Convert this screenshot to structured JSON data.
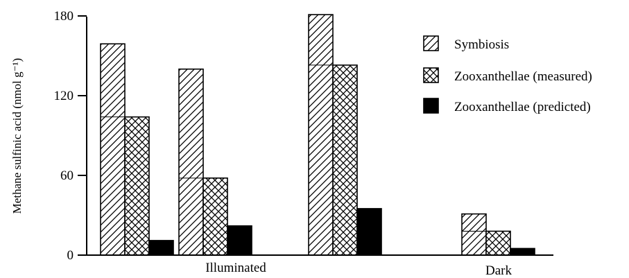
{
  "chart_data": {
    "type": "bar",
    "ylabel": "Methane sulfinic acid (nmol g⁻¹)",
    "ylim": [
      0,
      180
    ],
    "yticks": [
      0,
      60,
      120,
      180
    ],
    "grid": false,
    "legend_position": "top-right",
    "legend": [
      {
        "name": "Symbiosis",
        "pattern": "hatch"
      },
      {
        "name": "Zooxanthellae (measured)",
        "pattern": "crosshatch"
      },
      {
        "name": "Zooxanthellae (predicted)",
        "pattern": "solid"
      }
    ],
    "group_labels": [
      "Illuminated",
      "Dark"
    ],
    "bar_sets": [
      {
        "group": "Illuminated",
        "symbiosis": 159,
        "zoox_measured": 104,
        "zoox_predicted": 11
      },
      {
        "group": "Illuminated",
        "symbiosis": 140,
        "zoox_measured": 58,
        "zoox_predicted": 22
      },
      {
        "group": "Illuminated",
        "symbiosis": 181,
        "zoox_measured": 143,
        "zoox_predicted": 35
      },
      {
        "group": "Dark",
        "symbiosis": 31,
        "zoox_measured": 18,
        "zoox_predicted": 5
      }
    ],
    "colors": {
      "ink": "#000000",
      "background": "#ffffff"
    }
  }
}
